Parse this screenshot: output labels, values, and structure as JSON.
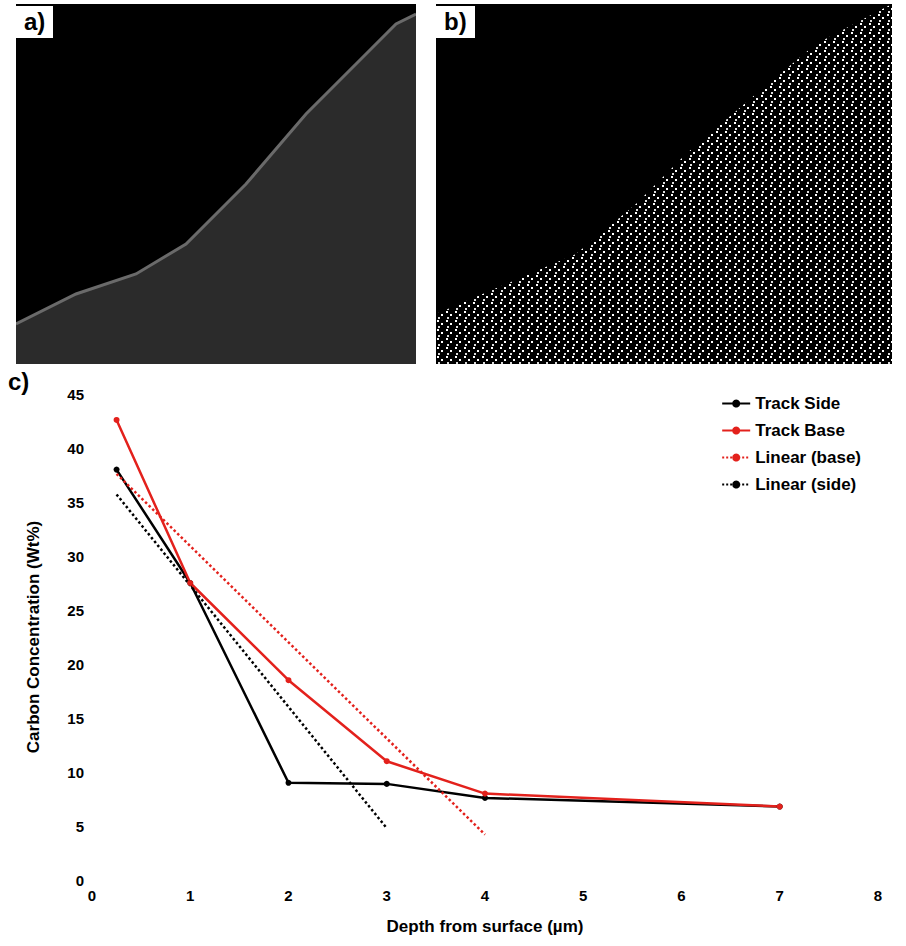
{
  "panel_labels": [
    "a)",
    "b)",
    "c)"
  ],
  "chart_data": {
    "type": "line",
    "x_label": "Depth from surface (µm)",
    "y_label": "Carbon Concentration (Wt%)",
    "xlim": [
      0,
      8
    ],
    "xticks": [
      0,
      1,
      2,
      3,
      4,
      5,
      6,
      7,
      8
    ],
    "ylim": [
      0,
      45
    ],
    "yticks": [
      0,
      5,
      10,
      15,
      20,
      25,
      30,
      35,
      40,
      45
    ],
    "grid": false,
    "legend": "top-right",
    "series": [
      {
        "name": "Track Side",
        "color": "#000000",
        "marker": "circle",
        "line_style": "solid",
        "x": [
          0.25,
          1,
          2,
          3,
          4,
          7
        ],
        "values": [
          38,
          27.5,
          9,
          8.9,
          7.6,
          6.8
        ]
      },
      {
        "name": "Track Base",
        "color": "#e3211c",
        "marker": "circle",
        "line_style": "solid",
        "x": [
          0.25,
          1,
          2,
          3,
          4,
          7
        ],
        "values": [
          42.6,
          27.5,
          18.5,
          11,
          8,
          6.8
        ]
      },
      {
        "name": "Linear (base)",
        "color": "#e3211c",
        "marker": "none",
        "line_style": "dotted",
        "x": [
          0.25,
          4
        ],
        "values": [
          37.6,
          4.2
        ]
      },
      {
        "name": "Linear (side)",
        "color": "#000000",
        "marker": "none",
        "line_style": "dotted",
        "x": [
          0.25,
          3
        ],
        "values": [
          35.7,
          4.8
        ]
      }
    ]
  }
}
